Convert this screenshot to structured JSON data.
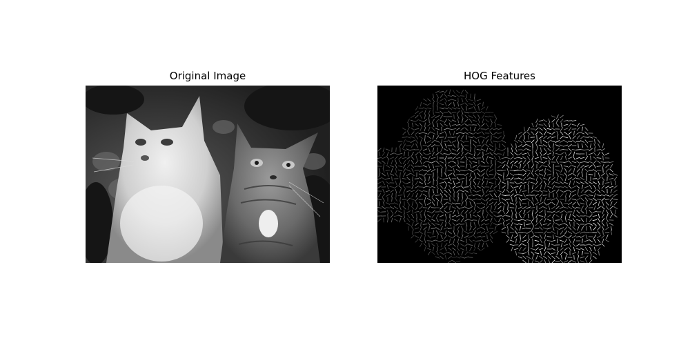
{
  "panels": [
    {
      "title": "Original Image",
      "subject": "grayscale-photo-two-cats",
      "background_color": "#1e1e1e"
    },
    {
      "title": "HOG Features",
      "subject": "hog-gradient-visualization-two-cats",
      "background_color": "#000000",
      "stroke_color": "#ffffff"
    }
  ]
}
